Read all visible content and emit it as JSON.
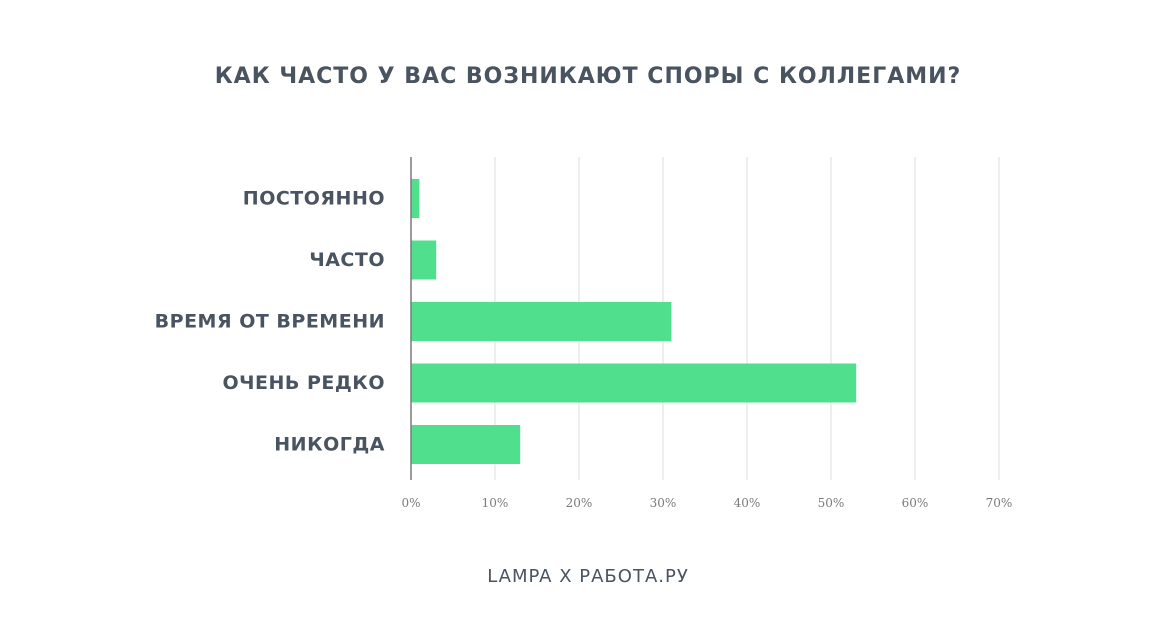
{
  "chart_data": {
    "type": "bar",
    "orientation": "horizontal",
    "title": "КАК ЧАСТО У ВАС ВОЗНИКАЮТ СПОРЫ С КОЛЛЕГАМИ?",
    "categories": [
      "ПОСТОЯННО",
      "ЧАСТО",
      "ВРЕМЯ ОТ ВРЕМЕНИ",
      "ОЧЕНЬ РЕДКО",
      "НИКОГДА"
    ],
    "values": [
      1,
      3,
      31,
      53,
      13
    ],
    "xlim": [
      0,
      70
    ],
    "ticks": [
      0,
      10,
      20,
      30,
      40,
      50,
      60,
      70
    ],
    "tick_labels": [
      "0%",
      "10%",
      "20%",
      "30%",
      "40%",
      "50%",
      "60%",
      "70%"
    ],
    "xlabel": "",
    "ylabel": "",
    "grid": true,
    "legend": "none",
    "bar_color": "#4fdf8d",
    "text_color": "#4a5360",
    "grid_color": "#dcdcdc",
    "axis_color": "#7a7a7a"
  },
  "footer": {
    "text": "LAMPA X РАБОТА.РУ"
  }
}
